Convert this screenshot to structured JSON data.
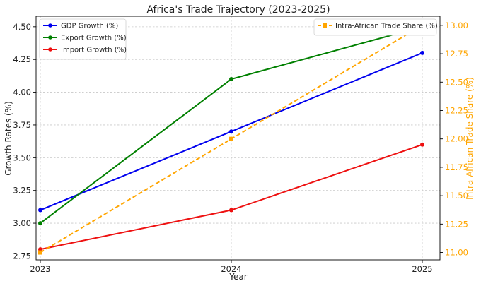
{
  "chart_data": {
    "type": "line",
    "title": "Africa's Trade Trajectory (2023-2025)",
    "xlabel": "Year",
    "ylabel": "Growth Rates (%)",
    "ylabel_right": "Intra-African Trade Share (%)",
    "x": [
      "2023",
      "2024",
      "2025"
    ],
    "ylim": [
      2.72,
      4.58
    ],
    "ylim_right": [
      10.935,
      13.08
    ],
    "yticks": [
      "2.75",
      "3.00",
      "3.25",
      "3.50",
      "3.75",
      "4.00",
      "4.25",
      "4.50"
    ],
    "yticks_right": [
      "11.00",
      "11.25",
      "11.50",
      "11.75",
      "12.00",
      "12.25",
      "12.50",
      "12.75",
      "13.00"
    ],
    "grid": true,
    "series": [
      {
        "name": "GDP Growth (%)",
        "values": [
          3.1,
          3.7,
          4.3
        ],
        "axis": "left",
        "color": "#0000ee",
        "dashed": false,
        "marker": "circle"
      },
      {
        "name": "Export Growth (%)",
        "values": [
          3.0,
          4.1,
          4.5
        ],
        "axis": "left",
        "color": "#008000",
        "dashed": false,
        "marker": "circle"
      },
      {
        "name": "Import Growth (%)",
        "values": [
          2.8,
          3.1,
          3.6
        ],
        "axis": "left",
        "color": "#ee1111",
        "dashed": false,
        "marker": "circle"
      },
      {
        "name": "Intra-African Trade Share (%)",
        "values": [
          11.0,
          12.0,
          13.0
        ],
        "axis": "right",
        "color": "#ffa500",
        "dashed": true,
        "marker": "square"
      }
    ],
    "legend_left": "top-left",
    "legend_right": "top-right",
    "right_axis_color": "#ffa500"
  }
}
